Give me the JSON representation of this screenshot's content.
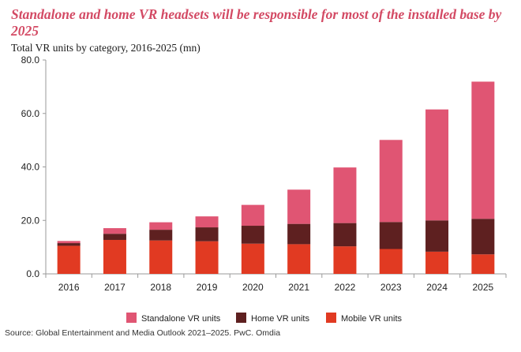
{
  "header": {
    "title": "Standalone and home VR headsets will be responsible for most of the installed base by 2025",
    "subtitle": "Total VR units by category, 2016-2025 (mn)"
  },
  "footer": {
    "source": "Source: Global Entertainment and Media Outlook 2021–2025. PwC. Omdia"
  },
  "colors": {
    "standalone": "#e05573",
    "home": "#5e2020",
    "mobile": "#e13a22",
    "title": "#d34a64"
  },
  "chart_data": {
    "type": "bar",
    "stacked": true,
    "title": "Standalone and home VR headsets will be responsible for most of the installed base by 2025",
    "subtitle": "Total VR units by category, 2016-2025 (mn)",
    "categories": [
      "2016",
      "2017",
      "2018",
      "2019",
      "2020",
      "2021",
      "2022",
      "2023",
      "2024",
      "2025"
    ],
    "series": [
      {
        "name": "Mobile VR units",
        "values": [
          10.5,
          12.7,
          12.5,
          12.2,
          11.3,
          11.1,
          10.3,
          9.3,
          8.3,
          7.3
        ]
      },
      {
        "name": "Home VR units",
        "values": [
          1.0,
          2.3,
          4.0,
          5.2,
          6.7,
          7.6,
          8.7,
          10.1,
          11.7,
          13.3
        ]
      },
      {
        "name": "Standalone VR units",
        "values": [
          0.8,
          2.1,
          2.8,
          4.1,
          7.8,
          12.8,
          20.8,
          30.7,
          41.5,
          51.3
        ]
      }
    ],
    "ylim": [
      0,
      80
    ],
    "yticks": [
      "0.0",
      "20.0",
      "40.0",
      "60.0",
      "80.0"
    ],
    "xlabel": "",
    "ylabel": "",
    "grid": false,
    "legend": "bottom",
    "legend_order": [
      "Standalone VR units",
      "Home VR units",
      "Mobile VR units"
    ]
  }
}
